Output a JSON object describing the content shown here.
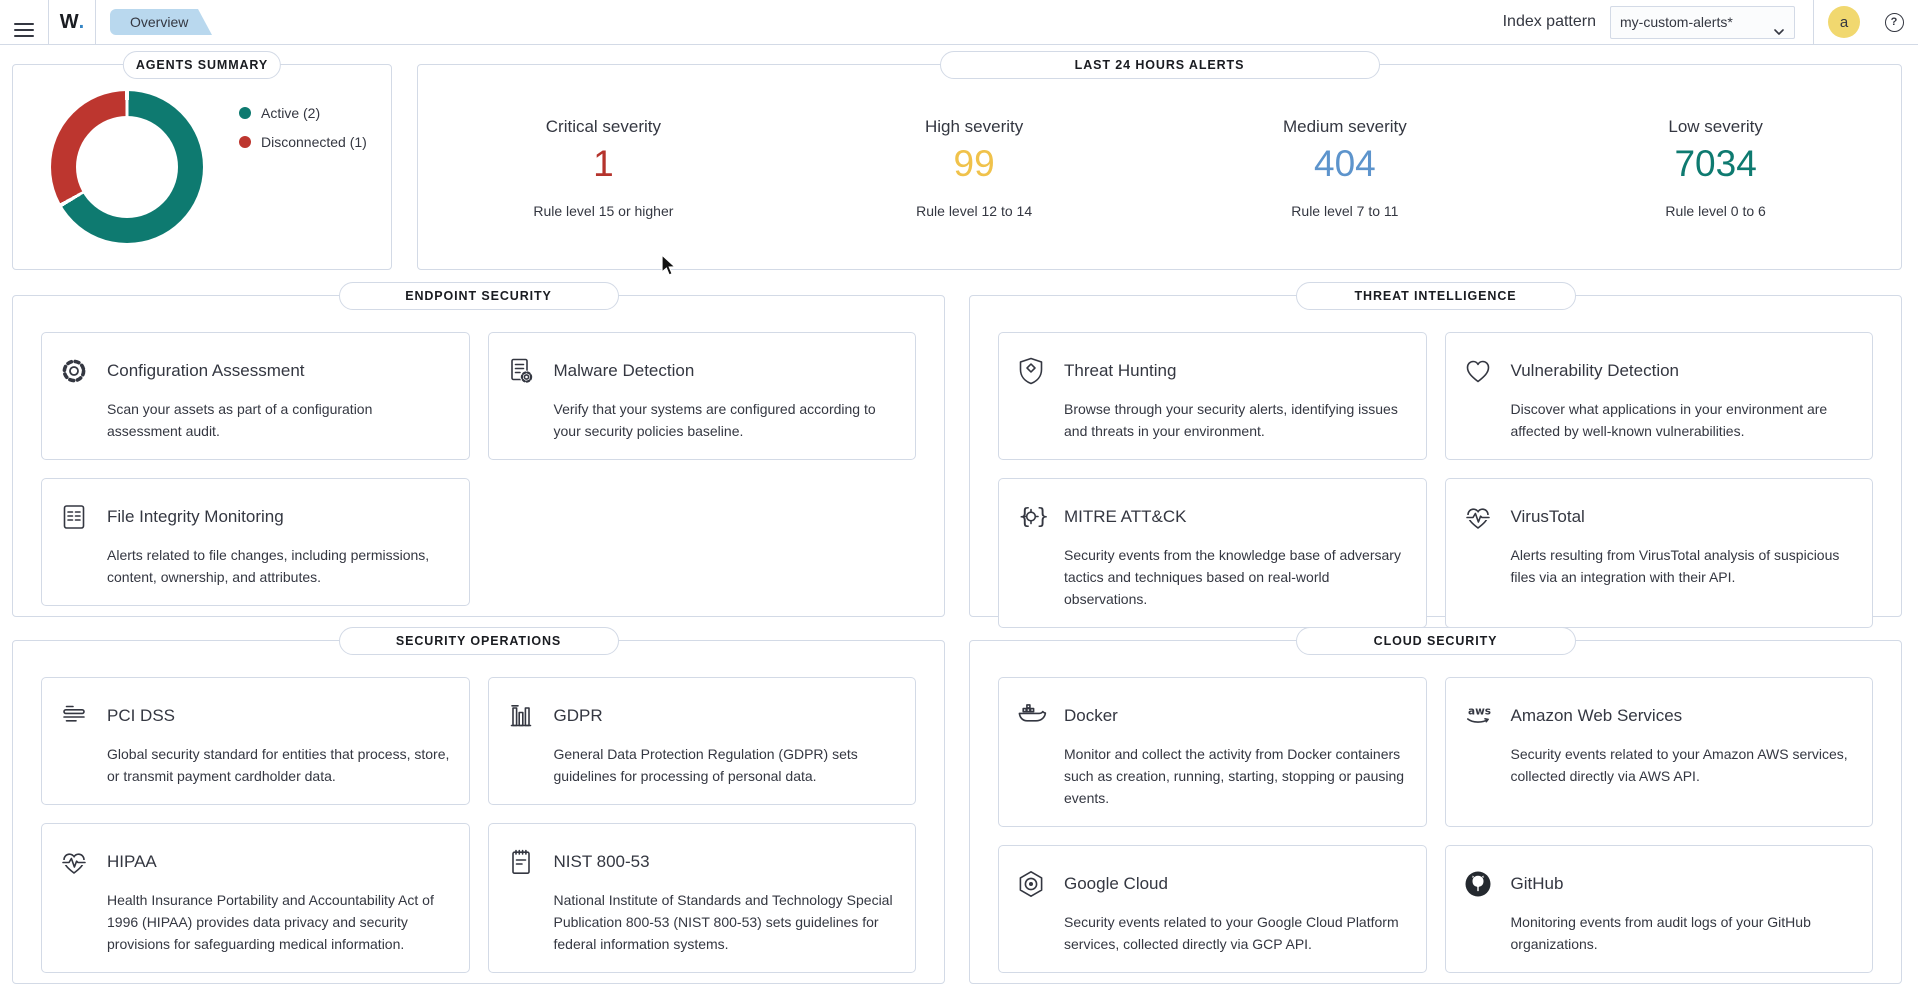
{
  "topbar": {
    "logo_text": "W",
    "logo_dot": ".",
    "tab": "Overview",
    "index_pattern_label": "Index pattern",
    "index_pattern_value": "my-custom-alerts*",
    "avatar_initial": "a",
    "help": "?"
  },
  "agents_summary": {
    "title": "AGENTS SUMMARY",
    "legend": [
      {
        "label": "Active (2)",
        "color": "#0e7a70"
      },
      {
        "label": "Disconnected (1)",
        "color": "#bd362f"
      }
    ]
  },
  "alerts": {
    "title": "LAST 24 HOURS ALERTS",
    "items": [
      {
        "label": "Critical severity",
        "value": "1",
        "sub": "Rule level 15 or higher",
        "color": "#b5332c"
      },
      {
        "label": "High severity",
        "value": "99",
        "sub": "Rule level 12 to 14",
        "color": "#f0c24b"
      },
      {
        "label": "Medium severity",
        "value": "404",
        "sub": "Rule level 7 to 11",
        "color": "#5d94cc"
      },
      {
        "label": "Low severity",
        "value": "7034",
        "sub": "Rule level 0 to 6",
        "color": "#0e7a70"
      }
    ]
  },
  "sections": [
    {
      "title": "ENDPOINT SECURITY",
      "cards": [
        {
          "icon": "configuration-assessment-icon",
          "title": "Configuration Assessment",
          "description": "Scan your assets as part of a configuration assessment audit."
        },
        {
          "icon": "malware-detection-icon",
          "title": "Malware Detection",
          "description": "Verify that your systems are configured according to your security policies baseline."
        },
        {
          "icon": "file-integrity-monitoring-icon",
          "title": "File Integrity Monitoring",
          "description": "Alerts related to file changes, including permissions, content, ownership, and attributes."
        }
      ]
    },
    {
      "title": "THREAT INTELLIGENCE",
      "cards": [
        {
          "icon": "threat-hunting-icon",
          "title": "Threat Hunting",
          "description": "Browse through your security alerts, identifying issues and threats in your environment."
        },
        {
          "icon": "vulnerability-detection-icon",
          "title": "Vulnerability Detection",
          "description": "Discover what applications in your environment are affected by well-known vulnerabilities."
        },
        {
          "icon": "mitre-attack-icon",
          "title": "MITRE ATT&CK",
          "description": "Security events from the knowledge base of adversary tactics and techniques based on real-world observations."
        },
        {
          "icon": "virustotal-icon",
          "title": "VirusTotal",
          "description": "Alerts resulting from VirusTotal analysis of suspicious files via an integration with their API."
        }
      ]
    },
    {
      "title": "SECURITY OPERATIONS",
      "cards": [
        {
          "icon": "pci-dss-icon",
          "title": "PCI DSS",
          "description": "Global security standard for entities that process, store, or transmit payment cardholder data."
        },
        {
          "icon": "gdpr-icon",
          "title": "GDPR",
          "description": "General Data Protection Regulation (GDPR) sets guidelines for processing of personal data."
        },
        {
          "icon": "hipaa-icon",
          "title": "HIPAA",
          "description": "Health Insurance Portability and Accountability Act of 1996 (HIPAA) provides data privacy and security provisions for safeguarding medical information."
        },
        {
          "icon": "nist-800-53-icon",
          "title": "NIST 800-53",
          "description": "National Institute of Standards and Technology Special Publication 800-53 (NIST 800-53) sets guidelines for federal information systems."
        }
      ]
    },
    {
      "title": "CLOUD SECURITY",
      "cards": [
        {
          "icon": "docker-icon",
          "title": "Docker",
          "description": "Monitor and collect the activity from Docker containers such as creation, running, starting, stopping or pausing events."
        },
        {
          "icon": "aws-icon",
          "title": "Amazon Web Services",
          "description": "Security events related to your Amazon AWS services, collected directly via AWS API."
        },
        {
          "icon": "google-cloud-icon",
          "title": "Google Cloud",
          "description": "Security events related to your Google Cloud Platform services, collected directly via GCP API."
        },
        {
          "icon": "github-icon",
          "title": "GitHub",
          "description": "Monitoring events from audit logs of your GitHub organizations."
        }
      ]
    }
  ],
  "chart_data": {
    "type": "pie",
    "variant": "donut",
    "title": "AGENTS SUMMARY",
    "categories": [
      "Active",
      "Disconnected"
    ],
    "values": [
      2,
      1
    ],
    "colors": [
      "#0e7a70",
      "#bd362f"
    ],
    "legend_position": "right"
  }
}
